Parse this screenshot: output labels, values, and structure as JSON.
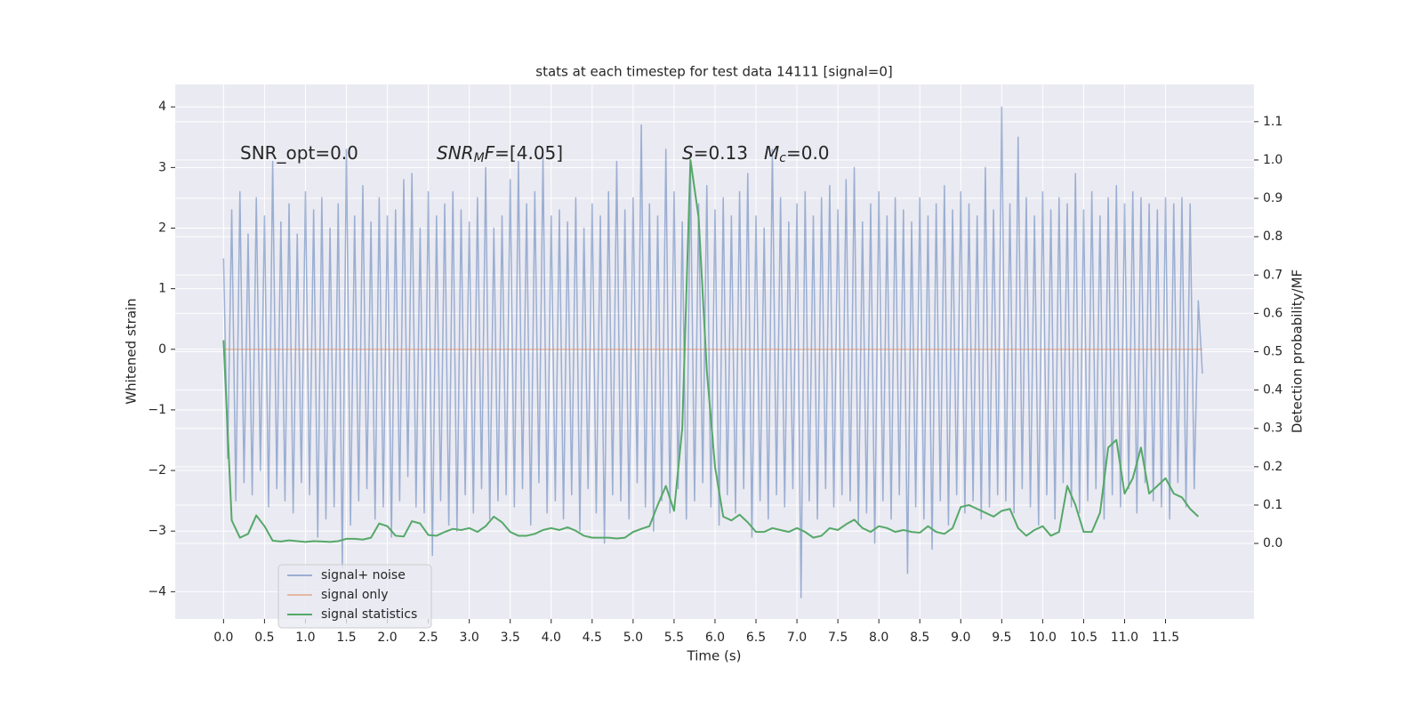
{
  "chart_data": {
    "type": "line",
    "title": "stats at each timestep for test data 14111 [signal=0]",
    "xlabel": "Time (s)",
    "ylabel": "Whitened strain",
    "y2label": "Detection probability/MF",
    "xlim": [
      -0.59,
      12.58
    ],
    "ylim": [
      -4.45,
      4.37
    ],
    "y2lim": [
      -0.197,
      1.197
    ],
    "xticks": [
      {
        "value": 0,
        "label": "0.0"
      },
      0.5,
      {
        "value": 1,
        "label": "1.0"
      },
      1.5,
      {
        "value": 2,
        "label": "2.0"
      },
      2.5,
      {
        "value": 3,
        "label": "3.0"
      },
      3.5,
      {
        "value": 4,
        "label": "4.0"
      },
      4.5,
      {
        "value": 5,
        "label": "5.0"
      },
      5.5,
      {
        "value": 6,
        "label": "6.0"
      },
      6.5,
      {
        "value": 7,
        "label": "7.0"
      },
      7.5,
      {
        "value": 8,
        "label": "8.0"
      },
      8.5,
      {
        "value": 9,
        "label": "9.0"
      },
      9.5,
      {
        "value": 10,
        "label": "10.0"
      },
      10.5,
      {
        "value": 11,
        "label": "11.0"
      },
      11.5
    ],
    "yticks": [
      {
        "value": -4,
        "label": "−4"
      },
      {
        "value": -3,
        "label": "−3"
      },
      {
        "value": -2,
        "label": "−2"
      },
      {
        "value": -1,
        "label": "−1"
      },
      0,
      1,
      2,
      3,
      4
    ],
    "y2ticks": [
      {
        "value": 0,
        "label": "0.0"
      },
      0.1,
      0.2,
      0.3,
      0.4,
      0.5,
      0.6,
      0.7,
      0.8,
      0.9,
      {
        "value": 1,
        "label": "1.0"
      },
      1.1
    ],
    "grid": true,
    "legend": "lower left",
    "annotations": [
      [
        {
          "text": "SNR_opt=0.0"
        }
      ],
      [
        {
          "text": "SNR",
          "italic": true
        },
        {
          "text": "M",
          "italic": true,
          "sub": true
        },
        {
          "text": "F",
          "italic": true
        },
        {
          "text": "=[4.05]"
        }
      ],
      [
        {
          "text": "S",
          "italic": true
        },
        {
          "text": "=0.13"
        }
      ],
      [
        {
          "text": "M",
          "italic": true
        },
        {
          "text": "c",
          "italic": true,
          "sub": true
        },
        {
          "text": "=0.0"
        }
      ]
    ],
    "series": [
      {
        "name": "signal+ noise",
        "color": "#4c72b0",
        "opacity": 0.5,
        "x": [
          0,
          0.05,
          0.1,
          0.15,
          0.2,
          0.25,
          0.3,
          0.35,
          0.4,
          0.45,
          0.5,
          0.55,
          0.6,
          0.65,
          0.7,
          0.75,
          0.8,
          0.85,
          0.9,
          0.95,
          1,
          1.05,
          1.1,
          1.15,
          1.2,
          1.25,
          1.3,
          1.35,
          1.4,
          1.45,
          1.5,
          1.55,
          1.6,
          1.65,
          1.7,
          1.75,
          1.8,
          1.85,
          1.9,
          1.95,
          2,
          2.05,
          2.1,
          2.15,
          2.2,
          2.25,
          2.3,
          2.35,
          2.4,
          2.45,
          2.5,
          2.55,
          2.6,
          2.65,
          2.7,
          2.75,
          2.8,
          2.85,
          2.9,
          2.95,
          3,
          3.05,
          3.1,
          3.15,
          3.2,
          3.25,
          3.3,
          3.35,
          3.4,
          3.45,
          3.5,
          3.55,
          3.6,
          3.65,
          3.7,
          3.75,
          3.8,
          3.85,
          3.9,
          3.95,
          4,
          4.05,
          4.1,
          4.15,
          4.2,
          4.25,
          4.3,
          4.35,
          4.4,
          4.45,
          4.5,
          4.55,
          4.6,
          4.65,
          4.7,
          4.75,
          4.8,
          4.85,
          4.9,
          4.95,
          5,
          5.05,
          5.1,
          5.15,
          5.2,
          5.25,
          5.3,
          5.35,
          5.4,
          5.45,
          5.5,
          5.55,
          5.6,
          5.65,
          5.7,
          5.75,
          5.8,
          5.85,
          5.9,
          5.95,
          6,
          6.05,
          6.1,
          6.15,
          6.2,
          6.25,
          6.3,
          6.35,
          6.4,
          6.45,
          6.5,
          6.55,
          6.6,
          6.65,
          6.7,
          6.75,
          6.8,
          6.85,
          6.9,
          6.95,
          7,
          7.05,
          7.1,
          7.15,
          7.2,
          7.25,
          7.3,
          7.35,
          7.4,
          7.45,
          7.5,
          7.55,
          7.6,
          7.65,
          7.7,
          7.75,
          7.8,
          7.85,
          7.9,
          7.95,
          8,
          8.05,
          8.1,
          8.15,
          8.2,
          8.25,
          8.3,
          8.35,
          8.4,
          8.45,
          8.5,
          8.55,
          8.6,
          8.65,
          8.7,
          8.75,
          8.8,
          8.85,
          8.9,
          8.95,
          9,
          9.05,
          9.1,
          9.15,
          9.2,
          9.25,
          9.3,
          9.35,
          9.4,
          9.45,
          9.5,
          9.55,
          9.6,
          9.65,
          9.7,
          9.75,
          9.8,
          9.85,
          9.9,
          9.95,
          10,
          10.05,
          10.1,
          10.15,
          10.2,
          10.25,
          10.3,
          10.35,
          10.4,
          10.45,
          10.5,
          10.55,
          10.6,
          10.65,
          10.7,
          10.75,
          10.8,
          10.85,
          10.9,
          10.95,
          11,
          11.05,
          11.1,
          11.15,
          11.2,
          11.25,
          11.3,
          11.35,
          11.4,
          11.45,
          11.5,
          11.55,
          11.6,
          11.65,
          11.7,
          11.75,
          11.8,
          11.85,
          11.9,
          11.95
        ],
        "values": [
          1.5,
          -1.8,
          2.3,
          -2.5,
          2.6,
          -2.2,
          1.9,
          -2.4,
          2.5,
          -2.0,
          2.2,
          -2.6,
          3.1,
          -2.3,
          2.1,
          -2.5,
          2.4,
          -2.7,
          1.9,
          -2.2,
          2.6,
          -2.4,
          2.3,
          -3.1,
          2.5,
          -2.8,
          2.0,
          -2.6,
          2.4,
          -3.6,
          3.3,
          -2.9,
          2.2,
          -2.5,
          2.7,
          -2.3,
          2.1,
          -2.8,
          2.5,
          -2.6,
          2.2,
          -3.1,
          2.3,
          -2.5,
          2.8,
          -2.1,
          2.9,
          -2.6,
          2.0,
          -2.7,
          2.6,
          -3.4,
          2.2,
          -2.5,
          2.4,
          -2.9,
          2.6,
          -3.0,
          2.3,
          -2.4,
          2.1,
          -2.7,
          2.5,
          -2.3,
          3.0,
          -2.8,
          2.0,
          -2.5,
          2.2,
          -2.4,
          2.8,
          -2.6,
          3.1,
          -2.3,
          2.4,
          -2.9,
          2.6,
          -2.2,
          3.2,
          -2.7,
          2.2,
          -2.5,
          2.3,
          -2.8,
          2.1,
          -2.4,
          2.5,
          -3.0,
          2.0,
          -2.3,
          2.4,
          -2.7,
          2.2,
          -3.2,
          2.6,
          -2.4,
          3.1,
          -2.5,
          2.3,
          -2.8,
          2.5,
          -2.2,
          3.7,
          -2.6,
          2.4,
          -3.0,
          2.2,
          -2.5,
          3.3,
          -2.7,
          2.6,
          -2.3,
          2.1,
          -2.8,
          3.0,
          -2.5,
          2.4,
          -2.2,
          2.7,
          -2.6,
          2.3,
          -2.9,
          2.5,
          -2.4,
          2.2,
          -2.7,
          2.6,
          -2.3,
          2.9,
          -3.1,
          2.2,
          -2.5,
          2.0,
          -2.8,
          3.3,
          -2.4,
          2.5,
          -2.6,
          2.1,
          -2.3,
          2.4,
          -4.1,
          2.6,
          -2.5,
          2.2,
          -2.8,
          2.5,
          -2.3,
          2.7,
          -2.6,
          2.3,
          -2.4,
          2.8,
          -2.5,
          3.0,
          -2.9,
          2.1,
          -2.7,
          2.4,
          -3.2,
          2.6,
          -2.5,
          2.2,
          -2.8,
          2.5,
          -2.4,
          2.3,
          -3.7,
          2.1,
          -2.6,
          2.5,
          -2.8,
          2.2,
          -3.3,
          2.4,
          -2.5,
          2.7,
          -2.9,
          2.3,
          -2.4,
          2.6,
          -2.7,
          2.4,
          -2.5,
          2.2,
          -2.8,
          3.0,
          -2.6,
          2.3,
          -2.4,
          4.0,
          -2.5,
          2.4,
          -2.7,
          3.5,
          -2.3,
          2.5,
          -2.6,
          2.2,
          -2.9,
          2.6,
          -2.4,
          2.3,
          -2.8,
          2.5,
          -2.2,
          2.4,
          -2.6,
          2.9,
          -2.7,
          2.3,
          -2.5,
          2.6,
          -2.3,
          2.2,
          -2.8,
          2.5,
          -2.4,
          2.7,
          -2.6,
          2.4,
          -2.3,
          2.6,
          -2.7,
          2.5,
          -2.2,
          2.4,
          -2.5,
          2.3,
          -2.6,
          2.5,
          -2.8,
          2.4,
          -2.2,
          2.5,
          -2.6,
          2.4,
          -2.3,
          0.8,
          -0.4
        ]
      },
      {
        "name": "signal only",
        "color": "#dd8452",
        "opacity": 0.5,
        "x": [
          0,
          11.95
        ],
        "values": [
          0,
          0
        ]
      },
      {
        "name": "signal statistics",
        "color": "#55a868",
        "opacity": 1,
        "axis": "y2",
        "x": [
          0,
          0.1,
          0.2,
          0.3,
          0.4,
          0.5,
          0.6,
          0.7,
          0.8,
          0.9,
          1,
          1.1,
          1.2,
          1.3,
          1.4,
          1.5,
          1.6,
          1.7,
          1.8,
          1.9,
          2,
          2.1,
          2.2,
          2.3,
          2.4,
          2.5,
          2.6,
          2.7,
          2.8,
          2.9,
          3,
          3.1,
          3.2,
          3.3,
          3.4,
          3.5,
          3.6,
          3.7,
          3.8,
          3.9,
          4,
          4.1,
          4.2,
          4.3,
          4.4,
          4.5,
          4.6,
          4.7,
          4.8,
          4.9,
          5,
          5.1,
          5.2,
          5.3,
          5.4,
          5.5,
          5.6,
          5.7,
          5.8,
          5.9,
          6,
          6.1,
          6.2,
          6.3,
          6.4,
          6.5,
          6.6,
          6.7,
          6.8,
          6.9,
          7,
          7.1,
          7.2,
          7.3,
          7.4,
          7.5,
          7.6,
          7.7,
          7.8,
          7.9,
          8,
          8.1,
          8.2,
          8.3,
          8.4,
          8.5,
          8.6,
          8.7,
          8.8,
          8.9,
          9,
          9.1,
          9.2,
          9.3,
          9.4,
          9.5,
          9.6,
          9.7,
          9.8,
          9.9,
          10,
          10.1,
          10.2,
          10.3,
          10.4,
          10.5,
          10.6,
          10.7,
          10.8,
          10.9,
          11,
          11.1,
          11.2,
          11.3,
          11.4,
          11.5,
          11.6,
          11.7,
          11.8,
          11.9
        ],
        "values": [
          0.53,
          0.06,
          0.015,
          0.025,
          0.073,
          0.045,
          0.007,
          0.005,
          0.008,
          0.006,
          0.004,
          0.006,
          0.005,
          0.004,
          0.006,
          0.012,
          0.012,
          0.01,
          0.015,
          0.052,
          0.045,
          0.02,
          0.018,
          0.058,
          0.052,
          0.022,
          0.02,
          0.03,
          0.038,
          0.035,
          0.04,
          0.03,
          0.045,
          0.07,
          0.055,
          0.03,
          0.02,
          0.02,
          0.025,
          0.035,
          0.04,
          0.035,
          0.042,
          0.033,
          0.02,
          0.015,
          0.015,
          0.015,
          0.013,
          0.015,
          0.03,
          0.038,
          0.045,
          0.1,
          0.15,
          0.085,
          0.3,
          1.0,
          0.85,
          0.45,
          0.2,
          0.07,
          0.06,
          0.075,
          0.055,
          0.03,
          0.03,
          0.04,
          0.035,
          0.03,
          0.04,
          0.03,
          0.015,
          0.02,
          0.04,
          0.035,
          0.05,
          0.062,
          0.04,
          0.03,
          0.045,
          0.04,
          0.03,
          0.035,
          0.03,
          0.028,
          0.045,
          0.03,
          0.025,
          0.04,
          0.095,
          0.1,
          0.09,
          0.08,
          0.07,
          0.085,
          0.09,
          0.04,
          0.02,
          0.035,
          0.045,
          0.02,
          0.03,
          0.15,
          0.1,
          0.03,
          0.03,
          0.08,
          0.25,
          0.27,
          0.13,
          0.17,
          0.25,
          0.13,
          0.15,
          0.17,
          0.13,
          0.12,
          0.09,
          0.07
        ]
      }
    ]
  }
}
